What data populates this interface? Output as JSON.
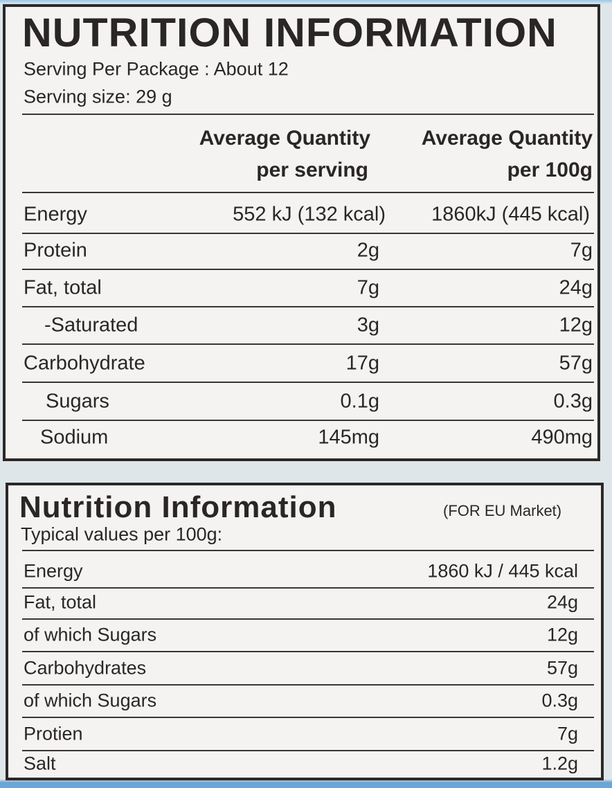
{
  "panel_1": {
    "title": "NUTRITION INFORMATION",
    "servings": "Serving Per Package : About 12",
    "serving_size": "Serving size: 29 g",
    "header": {
      "col_1": [
        "Average Quantity",
        "per serving"
      ],
      "col_2": [
        "Average Quantity",
        "per 100g"
      ]
    },
    "rows": [
      [
        "Energy",
        "552 kJ (132 kcal)",
        "1860kJ (445 kcal)"
      ],
      [
        "Protein",
        "2g",
        "7g"
      ],
      [
        "Fat, total",
        "7g",
        "24g"
      ],
      [
        "-Saturated",
        "3g",
        "12g"
      ],
      [
        "Carbohydrate",
        "17g",
        "57g"
      ],
      [
        "Sugars",
        "0.1g",
        "0.3g"
      ],
      [
        "Sodium",
        "145mg",
        "490mg"
      ]
    ]
  },
  "panel_2": {
    "title": "Nutrition Information",
    "market": "(FOR EU Market)",
    "subtitle": "Typical values per 100g:",
    "rows": [
      [
        "Energy",
        "1860 kJ / 445 kcal"
      ],
      [
        "Fat, total",
        "24g"
      ],
      [
        "of which Sugars",
        "12g"
      ],
      [
        "Carbohydrates",
        "57g"
      ],
      [
        "of which Sugars",
        "0.3g"
      ],
      [
        "Protien",
        "7g"
      ],
      [
        "Salt",
        "1.2g"
      ]
    ]
  }
}
